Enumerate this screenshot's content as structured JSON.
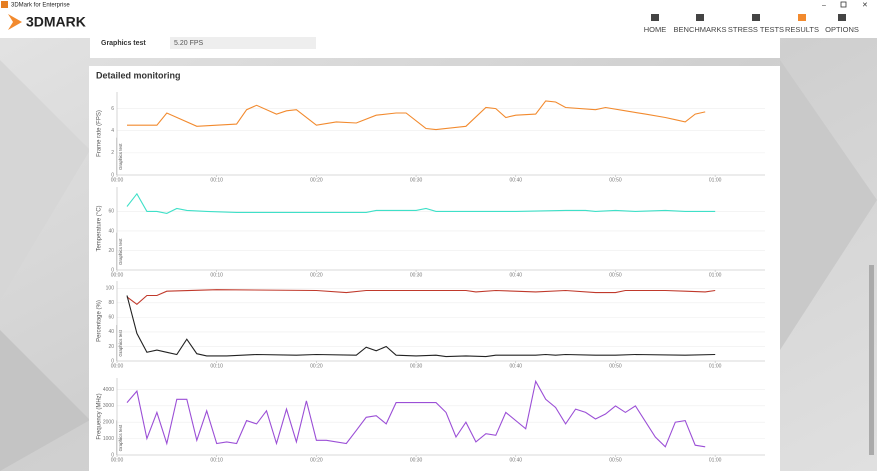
{
  "window": {
    "title": "3DMark for Enterprise"
  },
  "header": {
    "logo": "3DMARK",
    "nav": [
      "HOME",
      "BENCHMARKS",
      "STRESS TESTS",
      "RESULTS",
      "OPTIONS"
    ]
  },
  "summary": {
    "label": "Graphics test",
    "value": "5.20 FPS"
  },
  "section_title": "Detailed monitoring",
  "chart_data": [
    {
      "type": "line",
      "y_label": "Frame rate (FPS)",
      "band_label": "Graphics test",
      "grid": true,
      "xlim": [
        0,
        65
      ],
      "xticks": [
        {
          "value": 0,
          "label": "00:00"
        },
        {
          "value": 10,
          "label": "00:10"
        },
        {
          "value": 20,
          "label": "00:20"
        },
        {
          "value": 30,
          "label": "00:30"
        },
        {
          "value": 40,
          "label": "00:40"
        },
        {
          "value": 50,
          "label": "00:50"
        },
        {
          "value": 60,
          "label": "01:00"
        }
      ],
      "ylim": [
        0,
        7.5
      ],
      "yticks": [
        0,
        2,
        4,
        6
      ],
      "series": [
        {
          "color": "#f28a2e",
          "x": [
            1,
            4,
            5,
            8,
            12,
            13,
            14,
            16,
            17,
            18,
            20,
            22,
            24,
            26,
            28,
            29,
            31,
            32,
            35,
            37,
            38,
            39,
            40,
            42,
            43,
            44,
            45,
            48,
            49,
            51,
            53,
            55,
            56,
            57,
            58,
            59
          ],
          "values": [
            4.5,
            4.5,
            5.6,
            4.4,
            4.6,
            5.9,
            6.3,
            5.5,
            5.8,
            5.9,
            4.5,
            4.8,
            4.7,
            5.4,
            5.6,
            5.6,
            4.2,
            4.1,
            4.4,
            6.1,
            6.0,
            5.2,
            5.4,
            5.5,
            6.7,
            6.6,
            6.1,
            5.9,
            6.1,
            5.8,
            5.5,
            5.2,
            5.0,
            4.8,
            5.5,
            5.7
          ]
        }
      ]
    },
    {
      "type": "line",
      "y_label": "Temperature (°C)",
      "band_label": "Graphics test",
      "grid": true,
      "xlim": [
        0,
        65
      ],
      "xticks": [
        {
          "value": 0,
          "label": "00:00"
        },
        {
          "value": 10,
          "label": "00:10"
        },
        {
          "value": 20,
          "label": "00:20"
        },
        {
          "value": 30,
          "label": "00:30"
        },
        {
          "value": 40,
          "label": "00:40"
        },
        {
          "value": 50,
          "label": "00:50"
        },
        {
          "value": 60,
          "label": "01:00"
        }
      ],
      "ylim": [
        0,
        85
      ],
      "yticks": [
        0,
        20,
        40,
        60
      ],
      "series": [
        {
          "color": "#3fe0c8",
          "x": [
            1,
            2,
            3,
            4,
            5,
            6,
            7,
            9,
            12,
            20,
            25,
            26,
            30,
            31,
            32,
            40,
            45,
            47,
            48,
            50,
            52,
            55,
            57,
            60
          ],
          "values": [
            65,
            78,
            60,
            60,
            58,
            63,
            61,
            60,
            59,
            59,
            59,
            61,
            61,
            63,
            60,
            60,
            61,
            61,
            60,
            61,
            60,
            61,
            60,
            60
          ]
        }
      ]
    },
    {
      "type": "line",
      "y_label": "Percentage (%)",
      "band_label": "Graphics test",
      "grid": true,
      "xlim": [
        0,
        65
      ],
      "xticks": [
        {
          "value": 0,
          "label": "00:00"
        },
        {
          "value": 10,
          "label": "00:10"
        },
        {
          "value": 20,
          "label": "00:20"
        },
        {
          "value": 30,
          "label": "00:30"
        },
        {
          "value": 40,
          "label": "00:40"
        },
        {
          "value": 50,
          "label": "00:50"
        },
        {
          "value": 60,
          "label": "01:00"
        }
      ],
      "ylim": [
        0,
        110
      ],
      "yticks": [
        0,
        20,
        40,
        60,
        80,
        100
      ],
      "series": [
        {
          "color": "#c0392b",
          "x": [
            1,
            2,
            3,
            4,
            5,
            10,
            20,
            23,
            25,
            35,
            36,
            38,
            42,
            45,
            48,
            50,
            51,
            55,
            57,
            59,
            60
          ],
          "values": [
            88,
            78,
            90,
            90,
            96,
            98,
            97,
            94,
            97,
            97,
            95,
            97,
            95,
            97,
            94,
            94,
            97,
            97,
            96,
            95,
            97
          ]
        },
        {
          "color": "#222222",
          "x": [
            1,
            2,
            3,
            4,
            5,
            6,
            7,
            8,
            9,
            11,
            14,
            18,
            20,
            24,
            25,
            26,
            27,
            28,
            30,
            32,
            33,
            35,
            37,
            38,
            42,
            43,
            44,
            45,
            48,
            50,
            52,
            57,
            60
          ],
          "values": [
            90,
            38,
            12,
            15,
            12,
            9,
            30,
            10,
            7,
            7,
            9,
            8,
            9,
            8,
            19,
            14,
            20,
            8,
            7,
            8,
            6,
            7,
            6,
            8,
            8,
            9,
            8,
            9,
            8,
            8,
            9,
            8,
            9
          ]
        }
      ]
    },
    {
      "type": "line",
      "y_label": "Frequency (MHz)",
      "band_label": "Graphics test",
      "grid": true,
      "xlim": [
        0,
        65
      ],
      "xticks": [
        {
          "value": 0,
          "label": "00:00"
        },
        {
          "value": 10,
          "label": "00:10"
        },
        {
          "value": 20,
          "label": "00:20"
        },
        {
          "value": 30,
          "label": "00:30"
        },
        {
          "value": 40,
          "label": "00:40"
        },
        {
          "value": 50,
          "label": "00:50"
        },
        {
          "value": 60,
          "label": "01:00"
        }
      ],
      "ylim": [
        0,
        4700
      ],
      "yticks": [
        0,
        1000,
        2000,
        3000,
        4000
      ],
      "series": [
        {
          "color": "#9b4fd6",
          "x": [
            1,
            2,
            3,
            4,
            5,
            6,
            7,
            8,
            9,
            10,
            11,
            12,
            13,
            14,
            15,
            16,
            17,
            18,
            19,
            20,
            21,
            23,
            24,
            25,
            26,
            27,
            28,
            32,
            33,
            34,
            35,
            36,
            37,
            38,
            39,
            41,
            42,
            43,
            44,
            45,
            46,
            47,
            48,
            49,
            50,
            51,
            52,
            54,
            55,
            56,
            57,
            58,
            59
          ],
          "values": [
            3200,
            3900,
            1000,
            2600,
            700,
            3400,
            3400,
            900,
            2700,
            700,
            800,
            700,
            2100,
            1900,
            2700,
            700,
            2800,
            800,
            3300,
            900,
            900,
            700,
            1500,
            2300,
            2400,
            1900,
            3200,
            3200,
            2600,
            1100,
            2000,
            800,
            1300,
            1200,
            2600,
            1600,
            4500,
            3400,
            2900,
            1900,
            2800,
            2600,
            2200,
            2500,
            3000,
            2600,
            3000,
            1100,
            500,
            2000,
            2100,
            600,
            500
          ]
        }
      ]
    }
  ]
}
